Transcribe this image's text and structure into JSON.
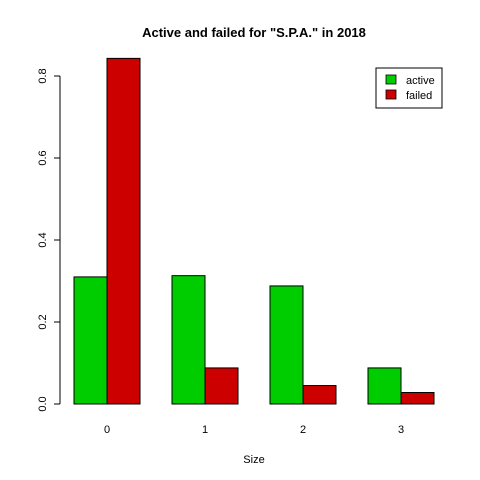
{
  "chart_data": {
    "type": "bar",
    "title": "Active and failed for \"S.P.A.\" in 2018",
    "xlabel": "Size",
    "ylabel": "",
    "categories": [
      "0",
      "1",
      "2",
      "3"
    ],
    "yticks": [
      "0.0",
      "0.2",
      "0.4",
      "0.6",
      "0.8"
    ],
    "ylim": [
      0,
      0.85
    ],
    "series": [
      {
        "name": "active",
        "color": "#00CD00",
        "values": [
          0.31,
          0.313,
          0.288,
          0.088
        ]
      },
      {
        "name": "failed",
        "color": "#CD0000",
        "values": [
          0.843,
          0.088,
          0.045,
          0.028
        ]
      }
    ],
    "legend": {
      "position": "top-right",
      "items": [
        "active",
        "failed"
      ]
    },
    "grid": false
  }
}
